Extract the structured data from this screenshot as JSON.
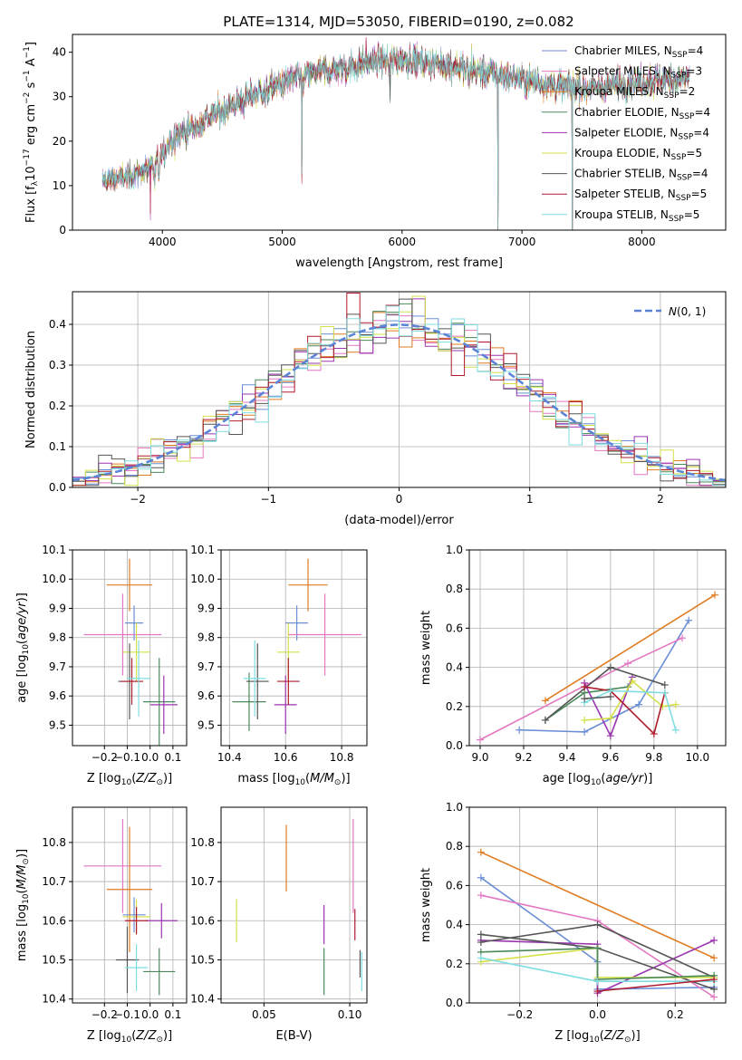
{
  "figure_title": "PLATE=1314, MJD=53050, FIBERID=0190, z=0.082",
  "colors": {
    "Chabrier MILES": "#6b8fd6",
    "Salpeter MILES": "#e377c2",
    "Kroupa MILES": "#e07b20",
    "Chabrier ELODIE": "#4a8a5a",
    "Salpeter ELODIE": "#9b36b0",
    "Kroupa ELODIE": "#d4e04a",
    "Chabrier STELIB": "#555555",
    "Salpeter STELIB": "#b01c2e",
    "Kroupa STELIB": "#7fdde0"
  },
  "chart_data": [
    {
      "id": "spectrum",
      "type": "line",
      "xlabel": "wavelength [Angstrom, rest frame]",
      "ylabel": "Flux [f",
      "xlim": [
        3250,
        8700
      ],
      "ylim": [
        0,
        44
      ],
      "xticks": [
        4000,
        5000,
        6000,
        7000,
        8000
      ],
      "yticks": [
        0,
        10,
        20,
        30,
        40
      ],
      "grid": false,
      "legend_position": "top-right",
      "continuum": [
        [
          3500,
          11
        ],
        [
          3700,
          12
        ],
        [
          3900,
          14
        ],
        [
          4000,
          17.5
        ],
        [
          4100,
          21
        ],
        [
          4300,
          24
        ],
        [
          4500,
          27
        ],
        [
          4800,
          31
        ],
        [
          5000,
          33
        ],
        [
          5200,
          35
        ],
        [
          5500,
          36.5
        ],
        [
          5800,
          38
        ],
        [
          6000,
          38.5
        ],
        [
          6300,
          37.5
        ],
        [
          6600,
          36
        ],
        [
          7000,
          34
        ],
        [
          7300,
          32.5
        ],
        [
          7600,
          32
        ],
        [
          8000,
          33.5
        ],
        [
          8300,
          34
        ],
        [
          8400,
          34.5
        ]
      ],
      "absorption_lines": [
        [
          3934,
          -5
        ],
        [
          3969,
          -4
        ],
        [
          4102,
          -3
        ],
        [
          4304,
          -3
        ],
        [
          4861,
          -3
        ],
        [
          5175,
          -4
        ],
        [
          5893,
          -3
        ],
        [
          6563,
          -3
        ]
      ],
      "spikes": [
        [
          3510,
          -10
        ],
        [
          3550,
          -8
        ],
        [
          3900,
          -12
        ],
        [
          5165,
          -20
        ],
        [
          5700,
          6
        ],
        [
          5900,
          -8
        ],
        [
          6800,
          -40
        ],
        [
          7420,
          -40
        ],
        [
          6580,
          5
        ]
      ],
      "legend": [
        {
          "name": "Chabrier MILES",
          "n": "4"
        },
        {
          "name": "Salpeter MILES",
          "n": "3"
        },
        {
          "name": "Kroupa MILES",
          "n": "2"
        },
        {
          "name": "Chabrier ELODIE",
          "n": "4"
        },
        {
          "name": "Salpeter ELODIE",
          "n": "4"
        },
        {
          "name": "Kroupa ELODIE",
          "n": "5"
        },
        {
          "name": "Chabrier STELIB",
          "n": "4"
        },
        {
          "name": "Salpeter STELIB",
          "n": "5"
        },
        {
          "name": "Kroupa STELIB",
          "n": "5"
        }
      ]
    },
    {
      "id": "residual_hist",
      "type": "line",
      "xlabel": "(data-model)/error",
      "ylabel": "Normed distribution",
      "xlim": [
        -2.5,
        2.5
      ],
      "ylim": [
        0,
        0.48
      ],
      "xticks": [
        -2,
        -1,
        0,
        1,
        2
      ],
      "yticks": [
        0.0,
        0.1,
        0.2,
        0.3,
        0.4
      ],
      "grid": true,
      "legend_position": "top-right",
      "legend_label": "(0, 1)",
      "gaussian": {
        "mean": 0,
        "sigma": 1,
        "name": "N(0,1)"
      },
      "bin_width": 0.1,
      "spread": 0.03
    },
    {
      "id": "age_vs_Z",
      "type": "scatter",
      "xlabel": "Z [log",
      "ylabel": "age  [log",
      "xlim": [
        -0.34,
        0.16
      ],
      "ylim": [
        9.43,
        10.1
      ],
      "xticks": [
        -0.2,
        -0.1,
        0.0,
        0.1
      ],
      "yticks": [
        9.5,
        9.6,
        9.7,
        9.8,
        9.9,
        10.0,
        10.1
      ],
      "grid": true,
      "points": [
        {
          "model": "Chabrier MILES",
          "x": -0.07,
          "y": 9.85,
          "xerr": 0.04,
          "yerr": 0.06
        },
        {
          "model": "Salpeter MILES",
          "x": -0.12,
          "y": 9.81,
          "xerr": 0.17,
          "yerr": 0.14
        },
        {
          "model": "Kroupa MILES",
          "x": -0.09,
          "y": 9.98,
          "xerr": 0.1,
          "yerr": 0.09
        },
        {
          "model": "Chabrier ELODIE",
          "x": 0.04,
          "y": 9.58,
          "xerr": 0.07,
          "yerr": 0.15
        },
        {
          "model": "Salpeter ELODIE",
          "x": 0.06,
          "y": 9.57,
          "xerr": 0.06,
          "yerr": 0.1
        },
        {
          "model": "Kroupa ELODIE",
          "x": -0.06,
          "y": 9.75,
          "xerr": 0.06,
          "yerr": 0.1
        },
        {
          "model": "Chabrier STELIB",
          "x": -0.09,
          "y": 9.65,
          "xerr": 0.05,
          "yerr": 0.13
        },
        {
          "model": "Salpeter STELIB",
          "x": -0.08,
          "y": 9.65,
          "xerr": 0.05,
          "yerr": 0.08
        },
        {
          "model": "Kroupa STELIB",
          "x": -0.05,
          "y": 9.66,
          "xerr": 0.05,
          "yerr": 0.13
        }
      ]
    },
    {
      "id": "age_vs_mass",
      "type": "scatter",
      "xlabel": "mass [log",
      "ylabel": "",
      "xlim": [
        10.37,
        10.89
      ],
      "ylim": [
        9.43,
        10.1
      ],
      "xticks": [
        10.4,
        10.6,
        10.8
      ],
      "yticks": [
        9.5,
        9.6,
        9.7,
        9.8,
        9.9,
        10.0,
        10.1
      ],
      "grid": true,
      "points": [
        {
          "model": "Chabrier MILES",
          "x": 10.64,
          "y": 9.85,
          "xerr": 0.04,
          "yerr": 0.06
        },
        {
          "model": "Salpeter MILES",
          "x": 10.74,
          "y": 9.81,
          "xerr": 0.13,
          "yerr": 0.14
        },
        {
          "model": "Kroupa MILES",
          "x": 10.68,
          "y": 9.98,
          "xerr": 0.07,
          "yerr": 0.09
        },
        {
          "model": "Chabrier ELODIE",
          "x": 10.47,
          "y": 9.58,
          "xerr": 0.06,
          "yerr": 0.1
        },
        {
          "model": "Salpeter ELODIE",
          "x": 10.6,
          "y": 9.57,
          "xerr": 0.04,
          "yerr": 0.1
        },
        {
          "model": "Kroupa ELODIE",
          "x": 10.61,
          "y": 9.75,
          "xerr": 0.04,
          "yerr": 0.1
        },
        {
          "model": "Chabrier STELIB",
          "x": 10.5,
          "y": 9.65,
          "xerr": 0.04,
          "yerr": 0.13
        },
        {
          "model": "Salpeter STELIB",
          "x": 10.61,
          "y": 9.65,
          "xerr": 0.04,
          "yerr": 0.08
        },
        {
          "model": "Kroupa STELIB",
          "x": 10.49,
          "y": 9.66,
          "xerr": 0.04,
          "yerr": 0.13
        }
      ]
    },
    {
      "id": "weight_vs_age",
      "type": "line",
      "xlabel": "age  [log",
      "ylabel": "mass weight",
      "xlim": [
        8.95,
        10.13
      ],
      "ylim": [
        0.0,
        1.0
      ],
      "xticks": [
        9.0,
        9.2,
        9.4,
        9.6,
        9.8,
        10.0
      ],
      "yticks": [
        0.0,
        0.2,
        0.4,
        0.6,
        0.8,
        1.0
      ],
      "grid": true,
      "series": [
        {
          "model": "Chabrier MILES",
          "x": [
            9.18,
            9.48,
            9.73,
            9.96
          ],
          "y": [
            0.08,
            0.07,
            0.21,
            0.64
          ]
        },
        {
          "model": "Salpeter MILES",
          "x": [
            9.0,
            9.68,
            9.93
          ],
          "y": [
            0.03,
            0.42,
            0.55
          ]
        },
        {
          "model": "Kroupa MILES",
          "x": [
            9.3,
            10.08
          ],
          "y": [
            0.23,
            0.77
          ]
        },
        {
          "model": "Chabrier ELODIE",
          "x": [
            9.3,
            9.48,
            9.68
          ],
          "y": [
            0.13,
            0.27,
            0.3
          ]
        },
        {
          "model": "Salpeter ELODIE",
          "x": [
            9.48,
            9.6,
            9.7
          ],
          "y": [
            0.32,
            0.05,
            0.35
          ]
        },
        {
          "model": "Kroupa ELODIE",
          "x": [
            9.48,
            9.6,
            9.7,
            9.84,
            9.9
          ],
          "y": [
            0.13,
            0.14,
            0.33,
            0.2,
            0.21
          ]
        },
        {
          "model": "Chabrier STELIB",
          "x": [
            9.3,
            9.6,
            9.85
          ],
          "y": [
            0.13,
            0.4,
            0.31
          ]
        },
        {
          "model": "Salpeter STELIB",
          "x": [
            9.48,
            9.6,
            9.8,
            9.85
          ],
          "y": [
            0.3,
            0.28,
            0.06,
            0.27
          ]
        },
        {
          "model": "Kroupa STELIB",
          "x": [
            9.48,
            9.6,
            9.85,
            9.9
          ],
          "y": [
            0.22,
            0.28,
            0.27,
            0.08
          ]
        },
        {
          "model": "Chabrier STELIB",
          "x": [
            9.48,
            9.6
          ],
          "y": [
            0.24,
            0.25
          ]
        }
      ]
    },
    {
      "id": "mass_vs_Z",
      "type": "scatter",
      "xlabel": "Z [log",
      "ylabel": "mass [log",
      "xlim": [
        -0.34,
        0.16
      ],
      "ylim": [
        10.39,
        10.89
      ],
      "xticks": [
        -0.2,
        -0.1,
        0.0,
        0.1
      ],
      "yticks": [
        10.4,
        10.5,
        10.6,
        10.7,
        10.8
      ],
      "grid": true,
      "points": [
        {
          "model": "Chabrier MILES",
          "x": -0.07,
          "y": 10.615,
          "xerr": 0.05,
          "yerr": 0.045
        },
        {
          "model": "Salpeter MILES",
          "x": -0.12,
          "y": 10.74,
          "xerr": 0.17,
          "yerr": 0.12
        },
        {
          "model": "Kroupa MILES",
          "x": -0.09,
          "y": 10.68,
          "xerr": 0.1,
          "yerr": 0.16
        },
        {
          "model": "Chabrier ELODIE",
          "x": 0.04,
          "y": 10.47,
          "xerr": 0.07,
          "yerr": 0.06
        },
        {
          "model": "Salpeter ELODIE",
          "x": 0.05,
          "y": 10.6,
          "xerr": 0.07,
          "yerr": 0.045
        },
        {
          "model": "Kroupa ELODIE",
          "x": -0.06,
          "y": 10.61,
          "xerr": 0.06,
          "yerr": 0.045
        },
        {
          "model": "Chabrier STELIB",
          "x": -0.1,
          "y": 10.5,
          "xerr": 0.05,
          "yerr": 0.085
        },
        {
          "model": "Salpeter STELIB",
          "x": -0.06,
          "y": 10.6,
          "xerr": 0.05,
          "yerr": 0.035
        },
        {
          "model": "Kroupa STELIB",
          "x": -0.06,
          "y": 10.48,
          "xerr": 0.05,
          "yerr": 0.06
        }
      ]
    },
    {
      "id": "mass_vs_ebv",
      "type": "scatter",
      "xlabel": "E(B-V)",
      "ylabel": "",
      "xlim": [
        0.025,
        0.11
      ],
      "ylim": [
        10.39,
        10.89
      ],
      "xticks": [
        0.05,
        0.1
      ],
      "yticks": [
        10.4,
        10.5,
        10.6,
        10.7,
        10.8
      ],
      "grid": true,
      "points": [
        {
          "model": "Kroupa ELODIE",
          "x": 0.034,
          "y": 10.6,
          "xerr": 0,
          "yerr": 0.055
        },
        {
          "model": "Kroupa MILES",
          "x": 0.063,
          "y": 10.76,
          "xerr": 0,
          "yerr": 0.085
        },
        {
          "model": "Salpeter ELODIE",
          "x": 0.085,
          "y": 10.59,
          "xerr": 0,
          "yerr": 0.05
        },
        {
          "model": "Chabrier ELODIE",
          "x": 0.085,
          "y": 10.47,
          "xerr": 0,
          "yerr": 0.06
        },
        {
          "model": "Salpeter MILES",
          "x": 0.102,
          "y": 10.74,
          "xerr": 0,
          "yerr": 0.12
        },
        {
          "model": "Salpeter STELIB",
          "x": 0.103,
          "y": 10.59,
          "xerr": 0,
          "yerr": 0.04
        },
        {
          "model": "Chabrier STELIB",
          "x": 0.106,
          "y": 10.49,
          "xerr": 0,
          "yerr": 0.035
        },
        {
          "model": "Kroupa STELIB",
          "x": 0.107,
          "y": 10.47,
          "xerr": 0,
          "yerr": 0.05
        }
      ]
    },
    {
      "id": "weight_vs_Z",
      "type": "line",
      "xlabel": "Z [log",
      "ylabel": "mass weight",
      "xlim": [
        -0.33,
        0.33
      ],
      "ylim": [
        0.0,
        1.0
      ],
      "xticks": [
        -0.2,
        0.0,
        0.2
      ],
      "yticks": [
        0.0,
        0.2,
        0.4,
        0.6,
        0.8,
        1.0
      ],
      "grid": true,
      "series": [
        {
          "model": "Kroupa MILES",
          "x": [
            -0.3,
            0.3
          ],
          "y": [
            0.77,
            0.23
          ]
        },
        {
          "model": "Chabrier MILES",
          "x": [
            -0.3,
            0.0,
            0.0,
            0.3
          ],
          "y": [
            0.64,
            0.21,
            0.07,
            0.08
          ]
        },
        {
          "model": "Salpeter MILES",
          "x": [
            -0.3,
            0.0,
            0.3
          ],
          "y": [
            0.55,
            0.42,
            0.03
          ]
        },
        {
          "model": "Salpeter ELODIE",
          "x": [
            -0.3,
            0.0,
            0.0,
            0.3
          ],
          "y": [
            0.32,
            0.3,
            0.05,
            0.32
          ]
        },
        {
          "model": "Chabrier STELIB",
          "x": [
            -0.3,
            0.0,
            0.3
          ],
          "y": [
            0.31,
            0.4,
            0.13
          ]
        },
        {
          "model": "Chabrier STELIB",
          "x": [
            -0.3,
            0.0,
            0.3
          ],
          "y": [
            0.35,
            0.28,
            0.07
          ]
        },
        {
          "model": "Kroupa ELODIE",
          "x": [
            -0.3,
            0.0,
            0.0,
            0.3
          ],
          "y": [
            0.21,
            0.28,
            0.13,
            0.13
          ]
        },
        {
          "model": "Chabrier ELODIE",
          "x": [
            -0.3,
            0.0,
            0.0,
            0.3
          ],
          "y": [
            0.26,
            0.28,
            0.12,
            0.14
          ]
        },
        {
          "model": "Kroupa STELIB",
          "x": [
            -0.3,
            0.0,
            0.3
          ],
          "y": [
            0.23,
            0.11,
            0.11
          ]
        },
        {
          "model": "Salpeter STELIB",
          "x": [
            0.0,
            0.3
          ],
          "y": [
            0.06,
            0.12
          ]
        }
      ]
    }
  ]
}
